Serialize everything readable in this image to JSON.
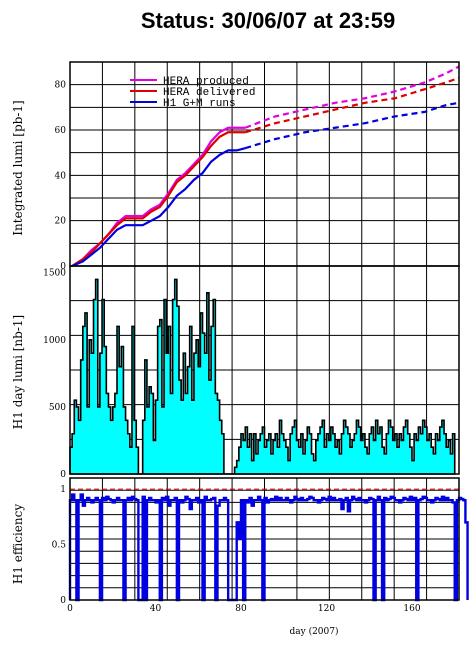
{
  "title": "Status: 30/06/07 at 23:59",
  "colors": {
    "produced": "#e000e0",
    "delivered": "#e00000",
    "h1": "#0000e0",
    "daylumi_fill": "#00ffff",
    "daylumi_line": "#000000",
    "efficiency": "#0000e0",
    "eff_ref": "#e00000"
  },
  "chart_data": [
    {
      "type": "line",
      "panel": "integrated",
      "ylabel": "Integrated lumi [pb-1]",
      "ylim": [
        0,
        90
      ],
      "yticks": [
        0,
        20,
        40,
        60,
        80
      ],
      "xlim": [
        0,
        182
      ],
      "grid": true,
      "legend": {
        "placement": "top-left",
        "entries": [
          "HERA produced",
          "HERA delivered",
          "H1 G+M runs"
        ]
      },
      "series": [
        {
          "name": "HERA produced",
          "solid": {
            "x": [
              1,
              6,
              10,
              14,
              18,
              22,
              26,
              30,
              34,
              38,
              42,
              46,
              50,
              54,
              58,
              62,
              66,
              70,
              74,
              78,
              82
            ],
            "y": [
              0,
              3,
              7,
              10,
              14,
              19,
              22,
              22,
              22,
              25,
              27,
              32,
              38,
              41,
              45,
              49,
              55,
              59,
              61,
              61,
              61
            ]
          },
          "dashed": {
            "x": [
              82,
              96,
              110,
              124,
              138,
              152,
              166,
              176,
              182
            ],
            "y": [
              61,
              66,
              69,
              72,
              74,
              77,
              81,
              85,
              88
            ]
          }
        },
        {
          "name": "HERA delivered",
          "solid": {
            "x": [
              1,
              6,
              10,
              14,
              18,
              22,
              26,
              30,
              34,
              38,
              42,
              46,
              50,
              54,
              58,
              62,
              66,
              70,
              74,
              78,
              82
            ],
            "y": [
              0,
              3,
              6,
              10,
              14,
              18,
              21,
              21,
              21,
              24,
              26,
              31,
              37,
              40,
              44,
              48,
              53,
              57,
              59,
              59,
              59
            ]
          },
          "dashed": {
            "x": [
              82,
              96,
              110,
              124,
              138,
              152,
              166,
              176,
              182
            ],
            "y": [
              59,
              63,
              66,
              69,
              72,
              74,
              78,
              81,
              83
            ]
          }
        },
        {
          "name": "H1 G+M runs",
          "solid": {
            "x": [
              1,
              6,
              10,
              14,
              18,
              22,
              26,
              30,
              34,
              38,
              42,
              46,
              50,
              54,
              58,
              62,
              66,
              70,
              74,
              78,
              82
            ],
            "y": [
              0,
              2,
              5,
              8,
              12,
              16,
              18,
              18,
              18,
              20,
              22,
              26,
              31,
              34,
              38,
              41,
              46,
              49,
              51,
              51,
              52
            ]
          },
          "dashed": {
            "x": [
              82,
              96,
              110,
              124,
              138,
              152,
              166,
              176,
              182
            ],
            "y": [
              52,
              56,
              59,
              61,
              63,
              66,
              68,
              71,
              72
            ]
          }
        }
      ]
    },
    {
      "type": "bar",
      "panel": "daylumi",
      "ylabel": "H1 day lumi [nb-1]",
      "ylim": [
        0,
        1550
      ],
      "yticks": [
        0,
        500,
        1000,
        1500
      ],
      "xlim": [
        0,
        182
      ],
      "grid": true,
      "x_start": 1,
      "values": [
        200,
        300,
        550,
        500,
        400,
        850,
        1100,
        1200,
        500,
        1000,
        900,
        1300,
        1450,
        500,
        900,
        1300,
        950,
        600,
        500,
        400,
        500,
        600,
        1100,
        800,
        950,
        500,
        400,
        300,
        200,
        1100,
        400,
        200,
        0,
        0,
        400,
        850,
        500,
        650,
        600,
        250,
        550,
        1100,
        1150,
        500,
        1300,
        900,
        1100,
        600,
        1300,
        1450,
        1250,
        700,
        550,
        900,
        600,
        800,
        1100,
        550,
        900,
        1000,
        800,
        1200,
        1050,
        900,
        1350,
        700,
        1100,
        1300,
        600,
        550,
        400,
        300,
        0,
        0,
        0,
        0,
        0,
        50,
        100,
        200,
        300,
        250,
        350,
        200,
        300,
        100,
        300,
        150,
        250,
        300,
        350,
        200,
        250,
        300,
        150,
        250,
        300,
        200,
        400,
        300,
        250,
        200,
        100,
        300,
        350,
        400,
        250,
        200,
        300,
        150,
        250,
        350,
        300,
        150,
        100,
        250,
        300,
        350,
        400,
        200,
        300,
        250,
        350,
        300,
        200,
        250,
        150,
        300,
        400,
        350,
        300,
        200,
        250,
        300,
        400,
        350,
        250,
        300,
        200,
        150,
        300,
        350,
        250,
        400,
        300,
        350,
        200,
        150,
        300,
        400,
        350,
        250,
        300,
        200,
        300,
        250,
        350,
        400,
        300,
        200,
        100,
        300,
        250,
        350,
        300,
        400,
        350,
        250,
        300,
        200,
        150,
        300,
        250,
        350,
        400,
        300,
        200,
        250,
        150,
        300
      ]
    },
    {
      "type": "bar",
      "panel": "efficiency",
      "ylabel": "H1 efficiency",
      "xlabel": "day (2007)",
      "ylim": [
        0,
        1.1
      ],
      "yticks": [
        0,
        0.5,
        1
      ],
      "xlim": [
        0,
        182
      ],
      "xticks": [
        0,
        40,
        80,
        120,
        160
      ],
      "grid": true,
      "reference_line": 1.0,
      "x_start": 1,
      "values": [
        0.9,
        0.95,
        0.9,
        0.0,
        0.9,
        0.95,
        0.85,
        0.9,
        0.92,
        0.9,
        0.88,
        0.9,
        0.92,
        0.9,
        0.0,
        0.92,
        0.9,
        0.93,
        0.91,
        0.9,
        0.88,
        0.9,
        0.92,
        0.9,
        0.9,
        0.0,
        0.9,
        0.92,
        0.9,
        0.93,
        0.91,
        0.9,
        0.0,
        0.0,
        0.93,
        0.0,
        0.9,
        0.92,
        0.9,
        0.9,
        0.88,
        0.9,
        0.0,
        0.92,
        0.9,
        0.93,
        0.85,
        0.9,
        0.9,
        0.92,
        0.0,
        0.9,
        0.88,
        0.9,
        0.93,
        0.91,
        0.82,
        0.9,
        0.9,
        0.92,
        0.88,
        0.9,
        0.0,
        0.93,
        0.9,
        0.9,
        0.91,
        0.92,
        0.0,
        0.85,
        0.9,
        0.9,
        0.92,
        0.9,
        0.0,
        0.0,
        0.0,
        0.0,
        0.7,
        0.55,
        0.9,
        0.0,
        0.9,
        0.88,
        0.92,
        0.85,
        0.9,
        0.9,
        0.93,
        0.9,
        0.0,
        0.92,
        0.88,
        0.9,
        0.91,
        0.9,
        0.93,
        0.9,
        0.92,
        0.9,
        0.9,
        0.92,
        0.9,
        0.88,
        0.9,
        0.93,
        0.91,
        0.9,
        0.92,
        0.9,
        0.9,
        0.91,
        0.93,
        0.92,
        0.9,
        0.9,
        0.88,
        0.9,
        0.92,
        0.91,
        0.9,
        0.93,
        0.9,
        0.92,
        0.9,
        0.9,
        0.91,
        0.82,
        0.9,
        0.92,
        0.8,
        0.9,
        0.93,
        0.91,
        0.9,
        0.92,
        0.9,
        0.9,
        0.88,
        0.9,
        0.92,
        0.91,
        0.0,
        0.9,
        0.93,
        0.9,
        0.0,
        0.92,
        0.9,
        0.91,
        0.93,
        0.92,
        0.9,
        0.9,
        0.88,
        0.9,
        0.92,
        0.91,
        0.9,
        0.93,
        0.9,
        0.92,
        0.0,
        0.9,
        0.91,
        0.93,
        0.92,
        0.9,
        0.9,
        0.88,
        0.9,
        0.92,
        0.91,
        0.9,
        0.93,
        0.9,
        0.92,
        0.9,
        0.9,
        0.88,
        0.0,
        0.9,
        0.92,
        0.91,
        0.9,
        0.7
      ]
    }
  ]
}
